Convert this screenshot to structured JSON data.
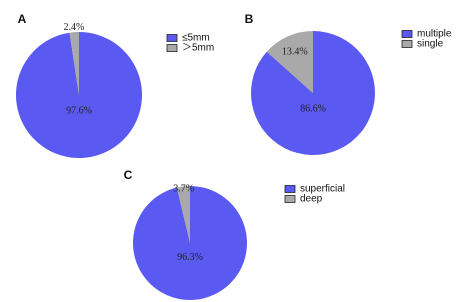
{
  "chart_data": [
    {
      "type": "pie",
      "panel": "A",
      "categories": [
        "≤5mm",
        "＞5mm"
      ],
      "values": [
        97.6,
        2.4
      ],
      "value_labels": [
        "97.6%",
        "2.4%"
      ],
      "colors": [
        "#5a5af2",
        "#a9a9a9"
      ]
    },
    {
      "type": "pie",
      "panel": "B",
      "categories": [
        "multiple",
        "single"
      ],
      "values": [
        86.6,
        13.4
      ],
      "value_labels": [
        "86.6%",
        "13.4%"
      ],
      "colors": [
        "#5a5af2",
        "#a9a9a9"
      ]
    },
    {
      "type": "pie",
      "panel": "C",
      "categories": [
        "superficial",
        "deep"
      ],
      "values": [
        96.3,
        3.7
      ],
      "value_labels": [
        "96.3%",
        "3.7%"
      ],
      "colors": [
        "#5a5af2",
        "#a9a9a9"
      ]
    }
  ]
}
